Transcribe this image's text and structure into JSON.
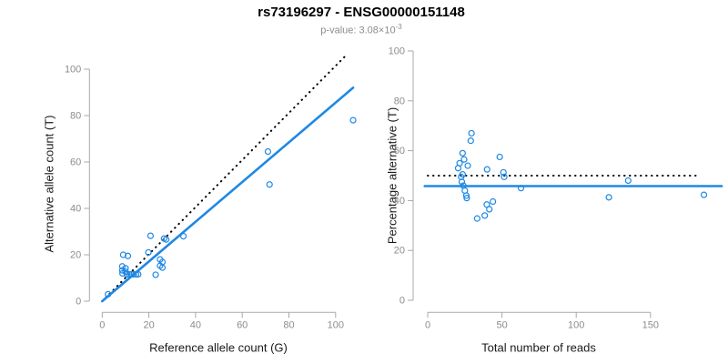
{
  "header": {
    "title": "rs73196297 - ENSG00000151148",
    "subtitle": {
      "text": "p-value: 3.08×10",
      "exponent": "-3"
    }
  },
  "colors": {
    "point_blue": "#1E88E5",
    "fit_line_blue": "#1E88E5",
    "dotted_line": "#000000",
    "axis_line": "#a8a8a8",
    "tick_label": "#8c8c8c",
    "title_color": "#000000",
    "subtitle_color": "#8c8c8c"
  },
  "chart_data": [
    {
      "type": "scatter",
      "panel": "left",
      "xlabel": "Reference allele count (G)",
      "ylabel": "Alternative allele count (T)",
      "xticks": [
        0,
        20,
        40,
        60,
        80,
        100
      ],
      "yticks": [
        0,
        20,
        40,
        60,
        80,
        100
      ],
      "xlim": [
        0,
        108
      ],
      "ylim": [
        0,
        108
      ],
      "grid": false,
      "points": [
        [
          2.5,
          3
        ],
        [
          9,
          20
        ],
        [
          11,
          19.5
        ],
        [
          8.6,
          15
        ],
        [
          10,
          14.2
        ],
        [
          8.6,
          13.3
        ],
        [
          10,
          12.7
        ],
        [
          8.7,
          12
        ],
        [
          10.6,
          11.6
        ],
        [
          11.6,
          11.6
        ],
        [
          12.6,
          11.6
        ],
        [
          13.5,
          11.6
        ],
        [
          14.5,
          11.6
        ],
        [
          15.4,
          11.6
        ],
        [
          19.8,
          21
        ],
        [
          20.7,
          28.2
        ],
        [
          26.5,
          27
        ],
        [
          27.4,
          26.6
        ],
        [
          34.8,
          28
        ],
        [
          24.8,
          18
        ],
        [
          25.8,
          16.9
        ],
        [
          24.8,
          15.3
        ],
        [
          25.8,
          14.5
        ],
        [
          22.9,
          11.4
        ],
        [
          71,
          64.5
        ],
        [
          71.7,
          50.3
        ],
        [
          107.5,
          78
        ]
      ],
      "lines": [
        {
          "label": "identity-line",
          "style": "dotted",
          "color": "#000000",
          "from": [
            1.5,
            1.5
          ],
          "to": [
            105,
            106.5
          ]
        },
        {
          "label": "fit-line",
          "style": "solid",
          "color": "#1E88E5",
          "from": [
            0,
            0
          ],
          "to": [
            107.5,
            92
          ]
        }
      ]
    },
    {
      "type": "scatter",
      "panel": "right",
      "xlabel": "Total number of reads",
      "ylabel": "Percentage alternative (T)",
      "xticks": [
        0,
        50,
        100,
        150
      ],
      "yticks": [
        0,
        20,
        40,
        60,
        80,
        100
      ],
      "xlim": [
        0,
        190
      ],
      "ylim": [
        0,
        100
      ],
      "grid": false,
      "points": [
        [
          29.5,
          67
        ],
        [
          29,
          64
        ],
        [
          23.5,
          59
        ],
        [
          24.5,
          56.5
        ],
        [
          21.5,
          55
        ],
        [
          27,
          54
        ],
        [
          20.5,
          53
        ],
        [
          48.5,
          57.5
        ],
        [
          40,
          52.5
        ],
        [
          23.5,
          50.5
        ],
        [
          51,
          51.3
        ],
        [
          51.5,
          49.5
        ],
        [
          22.5,
          49.5
        ],
        [
          23,
          47.5
        ],
        [
          24,
          46
        ],
        [
          25,
          44
        ],
        [
          26,
          42
        ],
        [
          26.3,
          41
        ],
        [
          62.8,
          45
        ],
        [
          43.9,
          39.6
        ],
        [
          39.8,
          38.4
        ],
        [
          41.5,
          36.5
        ],
        [
          38.4,
          34
        ],
        [
          33.3,
          32.8
        ],
        [
          135,
          48
        ],
        [
          122,
          41.3
        ],
        [
          186,
          42.3
        ]
      ],
      "lines": [
        {
          "label": "expected-50-line",
          "style": "dotted",
          "color": "#000000",
          "from": [
            0,
            50
          ],
          "to": [
            183,
            50
          ]
        },
        {
          "label": "fit-line",
          "style": "solid",
          "color": "#1E88E5",
          "from": [
            -2,
            45.8
          ],
          "to": [
            198,
            45.8
          ]
        }
      ]
    }
  ]
}
